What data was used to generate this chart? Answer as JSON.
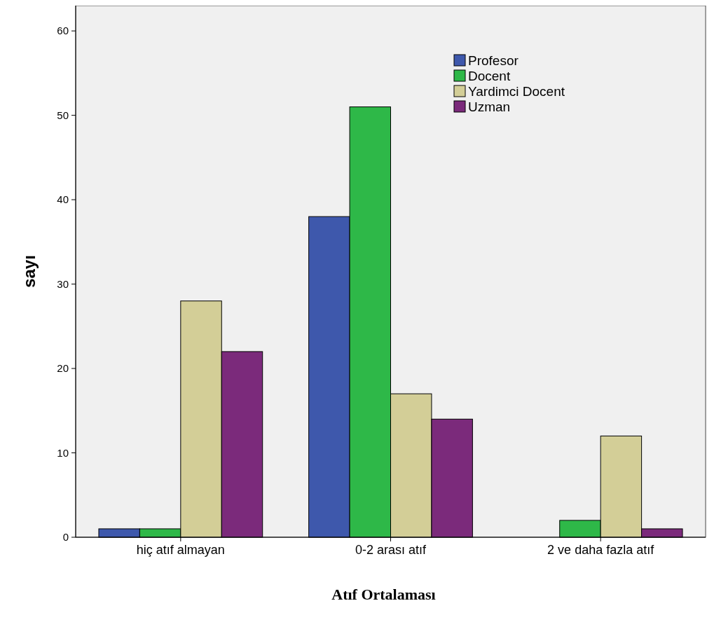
{
  "chart_data": {
    "type": "bar",
    "xlabel": "Atıf Ortalaması",
    "ylabel": "sayı",
    "categories": [
      "hiç atıf almayan",
      "0-2 arası atıf",
      "2 ve daha fazla atıf"
    ],
    "series": [
      {
        "name": "Profesor",
        "color": "#3e58ac",
        "values": [
          1,
          38,
          0
        ]
      },
      {
        "name": "Docent",
        "color": "#2eb848",
        "values": [
          1,
          51,
          2
        ]
      },
      {
        "name": "Yardimci Docent",
        "color": "#d3ce97",
        "values": [
          28,
          17,
          12
        ]
      },
      {
        "name": "Uzman",
        "color": "#7b2a7b",
        "values": [
          22,
          14,
          1
        ]
      }
    ],
    "ylim": [
      0,
      63
    ],
    "yticks": [
      0,
      10,
      20,
      30,
      40,
      50,
      60
    ],
    "legend": "top right"
  }
}
